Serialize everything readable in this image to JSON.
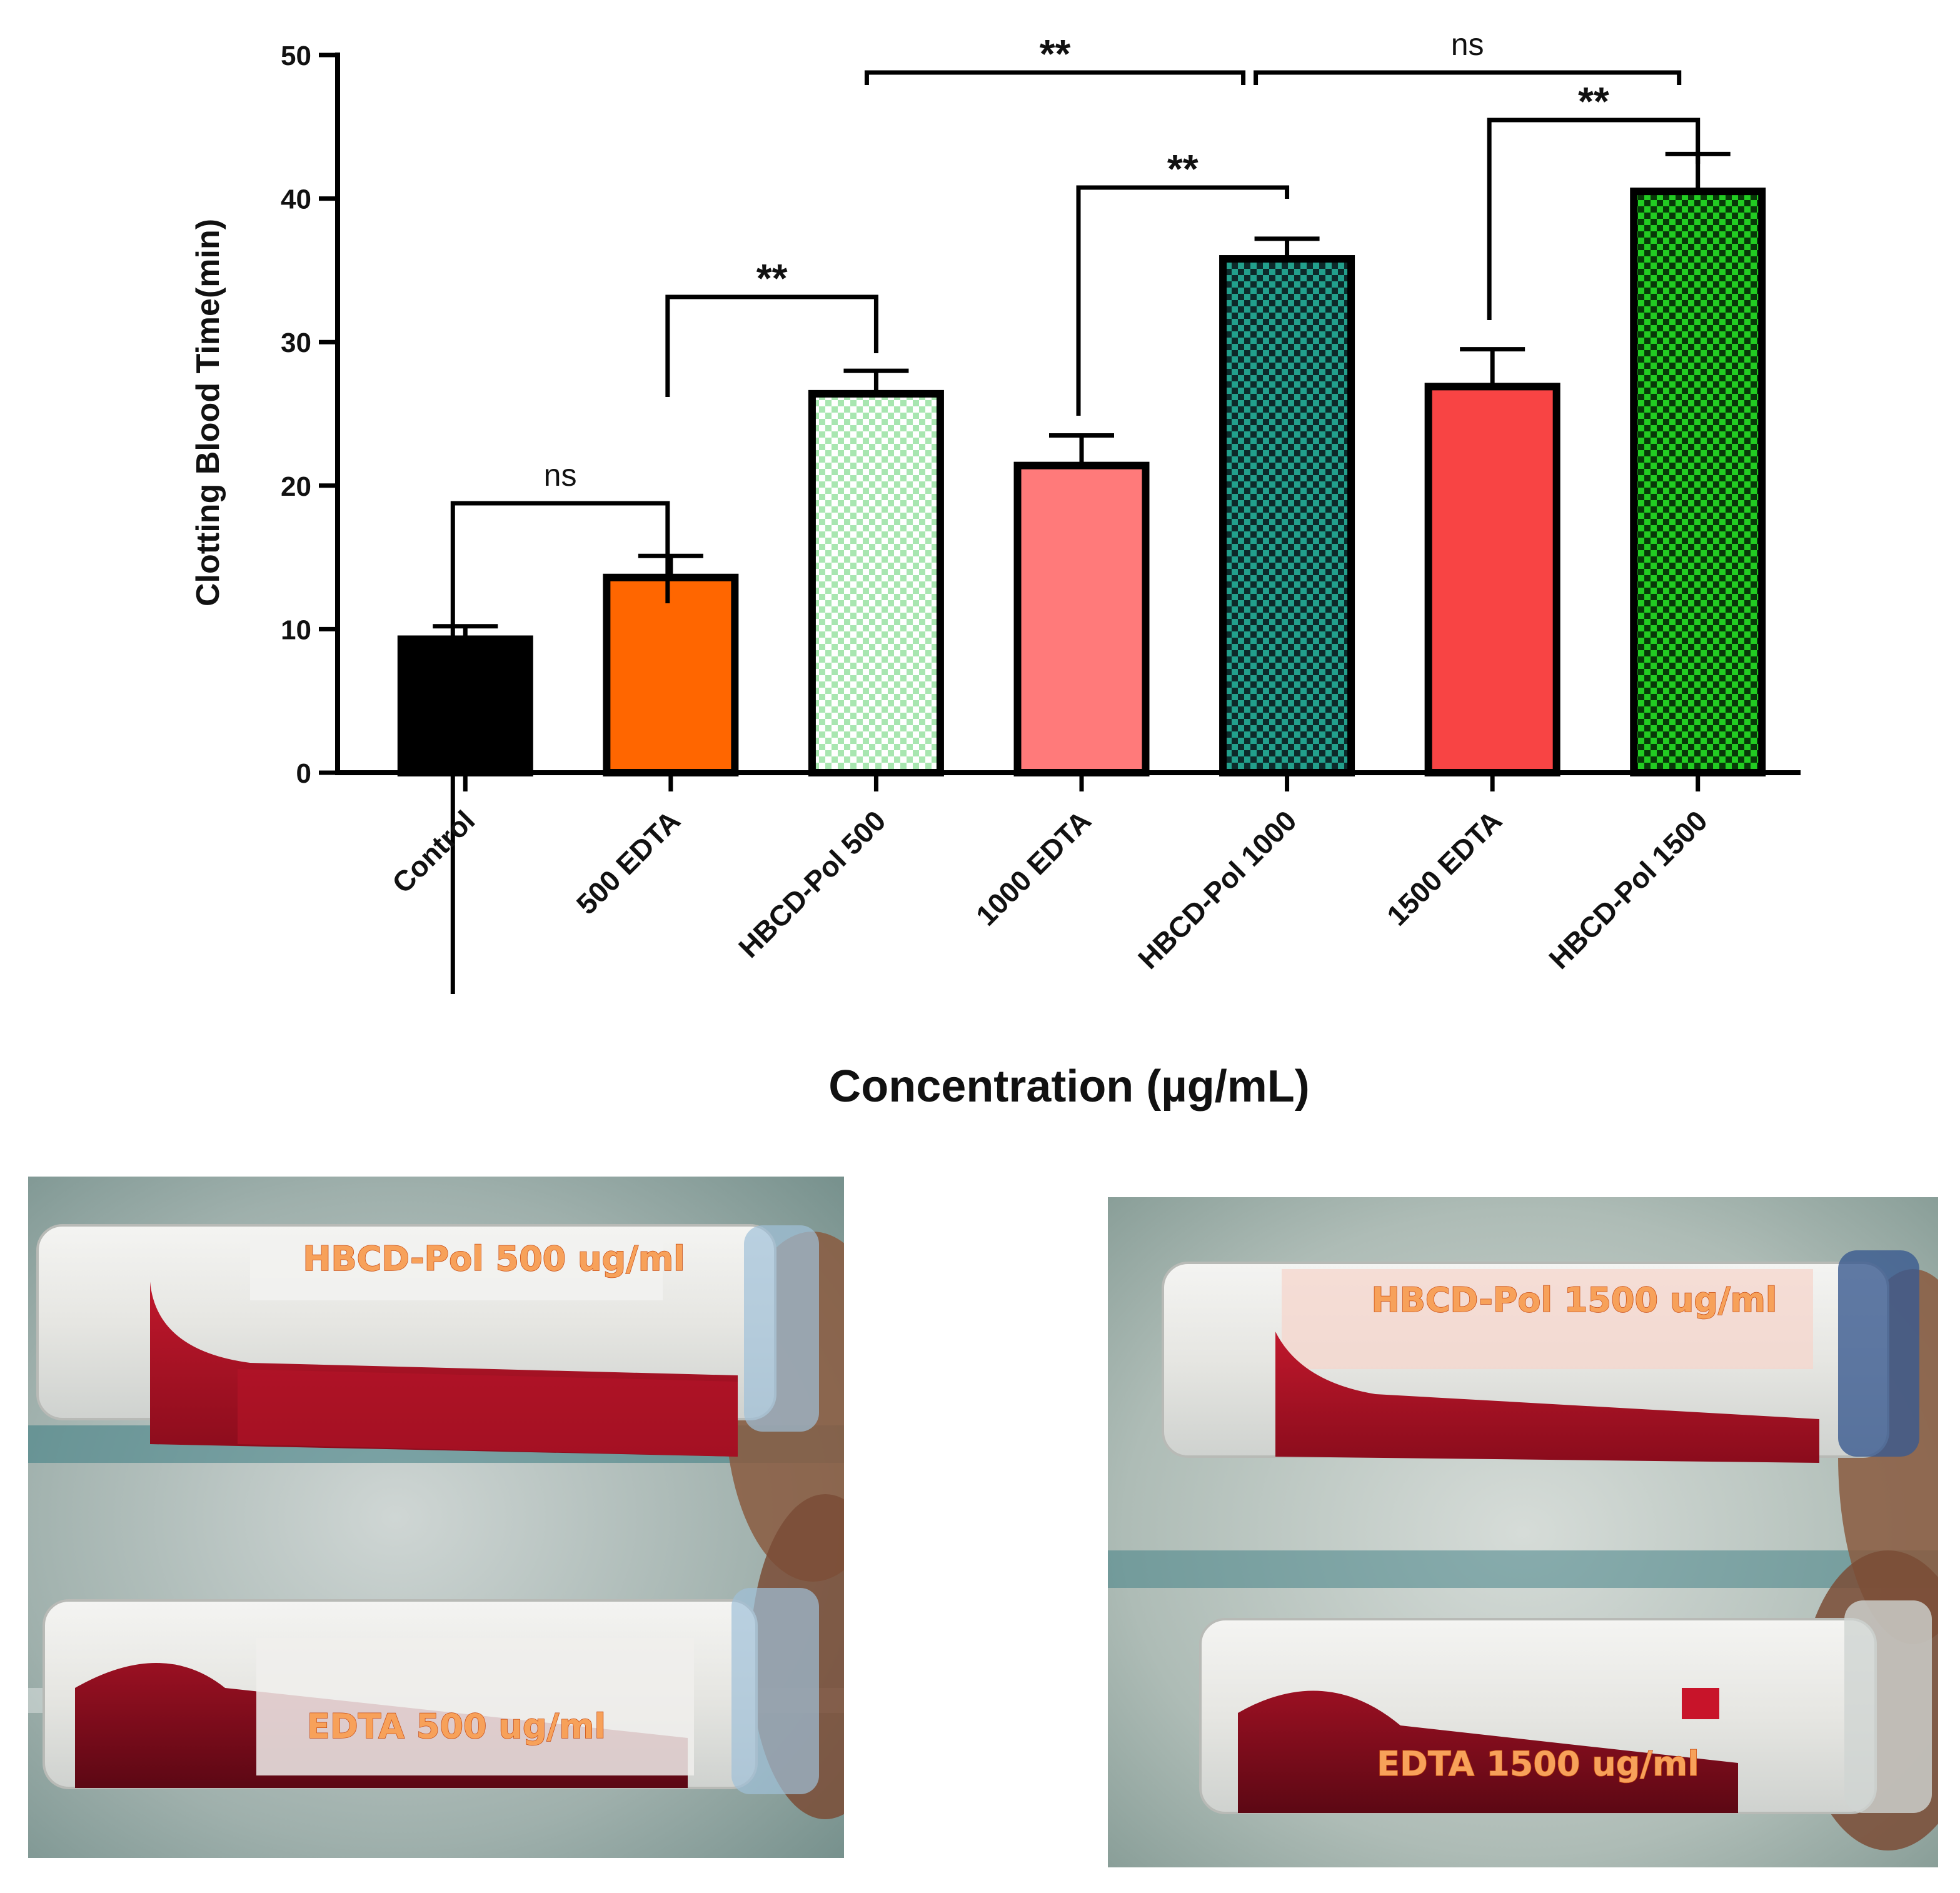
{
  "chart_data": {
    "type": "bar",
    "title": "",
    "xlabel": "Concentration (µg/mL)",
    "ylabel": "Clotting Blood Time(min)",
    "ylim": [
      0,
      50
    ],
    "yticks": [
      "0",
      "10",
      "20",
      "30",
      "40",
      "50"
    ],
    "grid": false,
    "categories": [
      "Control",
      "500  EDTA",
      "HBCD-Pol 500",
      "1000 EDTA",
      "HBCD-Pol 1000",
      "1500 EDTA",
      "HBCD-Pol 1500"
    ],
    "values": [
      9.3,
      13.6,
      26.4,
      21.4,
      35.8,
      26.9,
      40.5
    ],
    "errors": [
      0.9,
      1.5,
      1.6,
      2.1,
      1.4,
      2.6,
      2.6
    ],
    "colors": [
      "#000000",
      "#ff6600",
      "#c8f0c8",
      "#ff7a7a",
      "#1a9a88",
      "#f84444",
      "#22cc22"
    ],
    "checkered": [
      false,
      false,
      true,
      false,
      true,
      false,
      true
    ],
    "significance": [
      {
        "from": 0,
        "to": 1,
        "label": "ns"
      },
      {
        "from": 1,
        "to": 2,
        "label": "**"
      },
      {
        "from": 3,
        "to": 4,
        "label": "**"
      },
      {
        "from": 5,
        "to": 6,
        "label": "**"
      },
      {
        "from": 2,
        "to": 4,
        "label": "**"
      },
      {
        "from": 4,
        "to": 6,
        "label": "ns"
      }
    ]
  },
  "photos": [
    {
      "top_label": "HBCD-Pol 500 ug/ml",
      "bottom_label": "EDTA 500 ug/ml"
    },
    {
      "top_label": "HBCD-Pol 1500 ug/ml",
      "bottom_label": "EDTA 1500 ug/ml"
    }
  ]
}
